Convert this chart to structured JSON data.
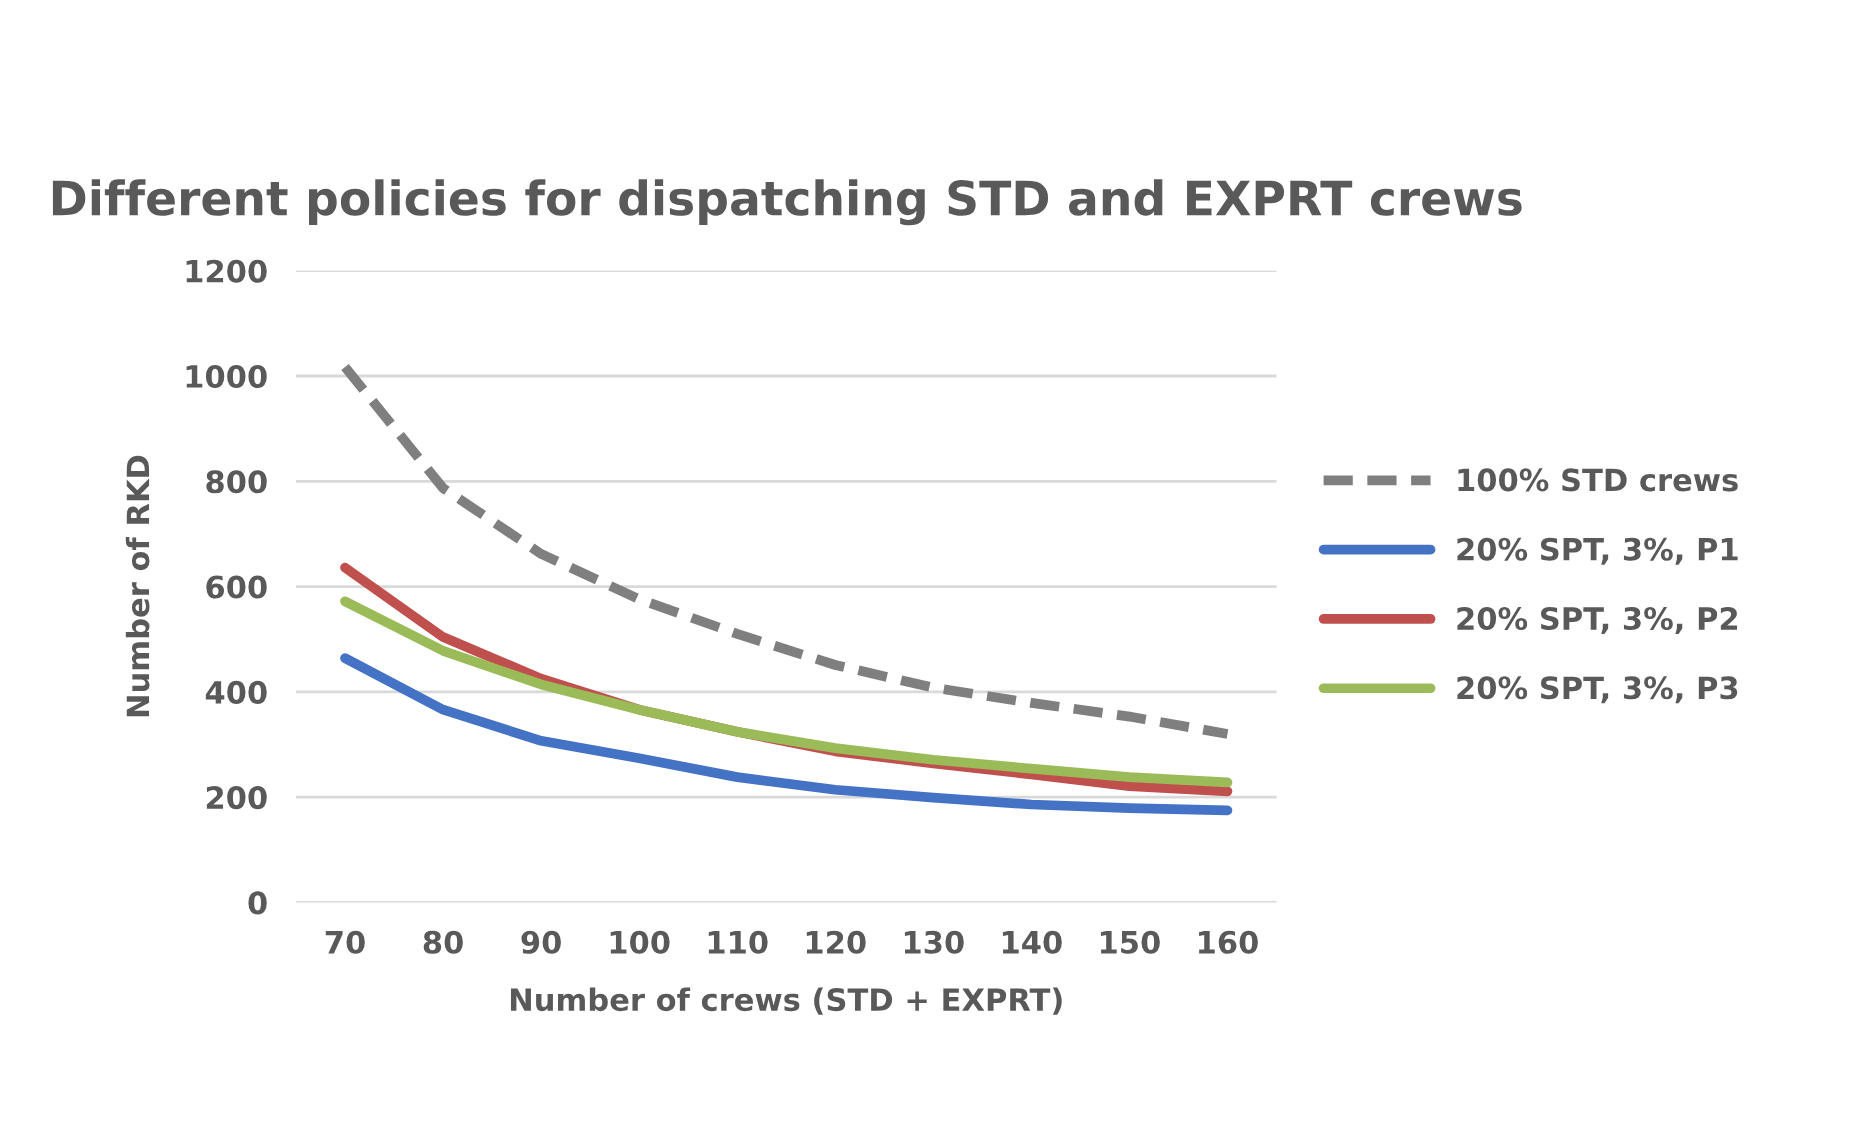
{
  "chart_data": {
    "type": "line",
    "title": "Different policies for dispatching STD and EXPRT crews",
    "xlabel": "Number of crews (STD + EXPRT)",
    "ylabel": "Number of RKD",
    "categories": [
      "70",
      "80",
      "90",
      "100",
      "110",
      "120",
      "130",
      "140",
      "150",
      "160"
    ],
    "series": [
      {
        "name": "100% STD crews",
        "color": "#7f7f7f",
        "line_style": "dashed",
        "values": [
          1017,
          787,
          662,
          576,
          510,
          451,
          408,
          379,
          353,
          320
        ]
      },
      {
        "name": "20% SPT, 3%, P1",
        "color": "#4472c4",
        "values": [
          464,
          366,
          307,
          274,
          238,
          214,
          199,
          186,
          179,
          175
        ]
      },
      {
        "name": "20% SPT, 3%, P2",
        "color": "#c0504d",
        "values": [
          636,
          504,
          425,
          366,
          324,
          287,
          264,
          243,
          221,
          211
        ]
      },
      {
        "name": "20% SPT, 3%, P3",
        "color": "#9bbb59",
        "values": [
          572,
          478,
          414,
          366,
          324,
          293,
          271,
          254,
          238,
          228
        ]
      }
    ],
    "ylim": [
      0,
      1200
    ],
    "yticks": [
      0,
      200,
      400,
      600,
      800,
      1000,
      1200
    ],
    "grid": "y",
    "legend": "right",
    "marker": "none"
  }
}
